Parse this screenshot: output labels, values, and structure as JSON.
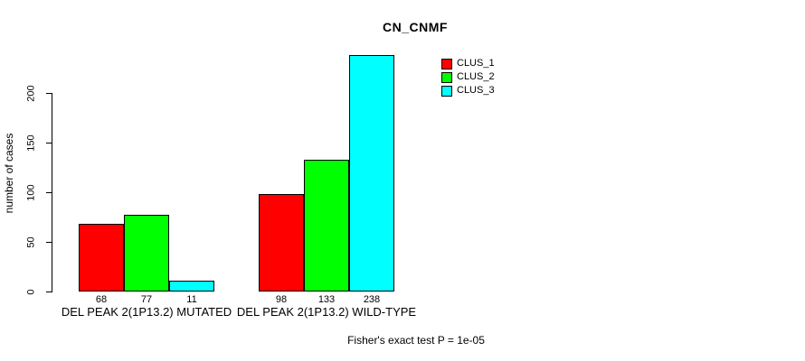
{
  "title": "CN_CNMF",
  "chart_data": {
    "type": "bar",
    "title": "CN_CNMF",
    "xlabel": "",
    "ylabel": "number of cases",
    "ylim": [
      0,
      240
    ],
    "yticks": [
      0,
      50,
      100,
      150,
      200
    ],
    "grid": false,
    "legend_position": "top-right",
    "categories": [
      "DEL PEAK 2(1P13.2) MUTATED",
      "DEL PEAK 2(1P13.2) WILD-TYPE"
    ],
    "series": [
      {
        "name": "CLUS_1",
        "color": "#ff0000",
        "values": [
          68,
          98
        ]
      },
      {
        "name": "CLUS_2",
        "color": "#00ff00",
        "values": [
          77,
          133
        ]
      },
      {
        "name": "CLUS_3",
        "color": "#00ffff",
        "values": [
          11,
          238
        ]
      }
    ],
    "bar_value_labels": [
      [
        68,
        77,
        11
      ],
      [
        98,
        133,
        238
      ]
    ],
    "footnote": "Fisher's exact test P = 1e-05"
  }
}
